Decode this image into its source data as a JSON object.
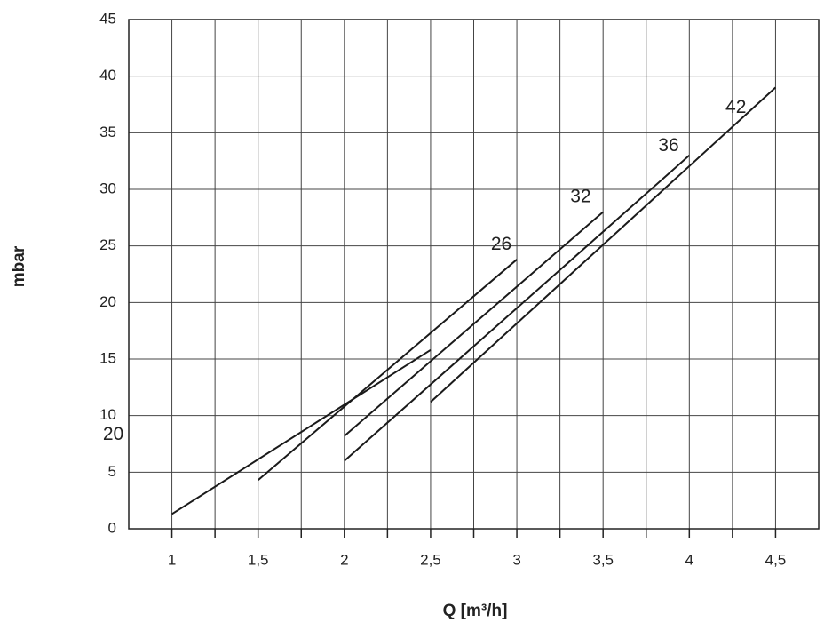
{
  "chart_data": {
    "type": "line",
    "y_label": "mbar",
    "x_label": "Q [m³/h]",
    "xlim": [
      0.75,
      4.75
    ],
    "ylim": [
      0,
      45
    ],
    "xticks": [
      1,
      {
        "value": 1.5,
        "label": "1,5"
      },
      2,
      {
        "value": 2.5,
        "label": "2,5"
      },
      3,
      {
        "value": 3.5,
        "label": "3,5"
      },
      4,
      {
        "value": 4.5,
        "label": "4,5"
      }
    ],
    "xminorticks": [
      1.25,
      1.75,
      2.25,
      2.75,
      3.25,
      3.75,
      4.25
    ],
    "yticks": [
      0,
      5,
      10,
      15,
      20,
      25,
      30,
      35,
      40,
      45
    ],
    "grid": true,
    "series": [
      {
        "name": "20",
        "color": "#1a1a1a",
        "x": [
          1.0,
          2.5
        ],
        "values": [
          1.3,
          15.8
        ]
      },
      {
        "name": "26",
        "color": "#1a1a1a",
        "x": [
          1.5,
          3.0
        ],
        "values": [
          4.3,
          23.8
        ]
      },
      {
        "name": "32",
        "color": "#1a1a1a",
        "x": [
          2.0,
          3.5
        ],
        "values": [
          8.2,
          28.0
        ]
      },
      {
        "name": "36",
        "color": "#1a1a1a",
        "x": [
          2.0,
          4.0
        ],
        "values": [
          6.0,
          33.0
        ]
      },
      {
        "name": "42",
        "color": "#1a1a1a",
        "x": [
          2.5,
          4.5
        ],
        "values": [
          11.2,
          39.0
        ]
      }
    ]
  }
}
